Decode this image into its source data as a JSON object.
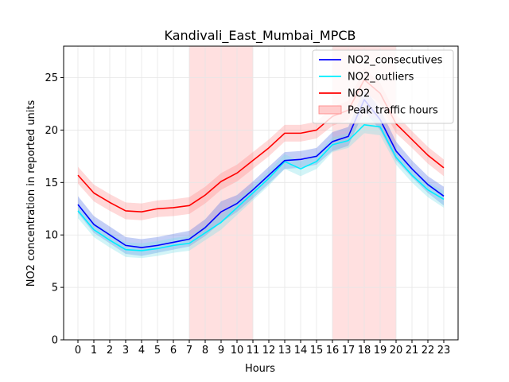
{
  "chart_data": {
    "type": "line",
    "title": "Kandivali_East_Mumbai_MPCB",
    "xlabel": "Hours",
    "ylabel": "NO2 concentration in reported units",
    "x": [
      0,
      1,
      2,
      3,
      4,
      5,
      6,
      7,
      8,
      9,
      10,
      11,
      12,
      13,
      14,
      15,
      16,
      17,
      18,
      19,
      20,
      21,
      22,
      23
    ],
    "xlim": [
      -0.9,
      23.9
    ],
    "ylim": [
      0,
      28
    ],
    "yticks": [
      0,
      5,
      10,
      15,
      20,
      25
    ],
    "grid": true,
    "legend_position": "top-right",
    "colors": {
      "NO2_consecutives": "#0000ff",
      "NO2_outliers": "#00eeff",
      "NO2": "#ff0000",
      "band_consecutives": "#3c5fe0",
      "band_outliers": "#7fe0e8",
      "band_no2": "#ff8080",
      "peak": "#ffcccc"
    },
    "peak_traffic_hours": [
      [
        7,
        11
      ],
      [
        16,
        20
      ]
    ],
    "series": [
      {
        "name": "NO2_consecutives",
        "values": [
          12.9,
          11.0,
          10.0,
          9.0,
          8.8,
          9.0,
          9.3,
          9.6,
          10.7,
          12.2,
          13.0,
          14.3,
          15.7,
          17.1,
          17.2,
          17.5,
          18.9,
          19.4,
          22.9,
          21.0,
          18.0,
          16.3,
          14.8,
          13.7
        ],
        "lower": [
          12.1,
          10.2,
          9.2,
          8.2,
          8.0,
          8.3,
          8.6,
          8.9,
          9.9,
          11.2,
          12.2,
          13.5,
          14.9,
          16.3,
          16.4,
          16.7,
          18.0,
          18.5,
          21.8,
          20.0,
          17.1,
          15.5,
          14.0,
          12.8
        ],
        "upper": [
          13.7,
          11.8,
          10.8,
          9.8,
          9.6,
          9.8,
          10.1,
          10.4,
          11.5,
          13.2,
          13.8,
          15.1,
          16.5,
          17.9,
          18.0,
          18.3,
          19.8,
          20.3,
          24.0,
          22.0,
          18.9,
          17.1,
          15.6,
          14.6
        ]
      },
      {
        "name": "NO2_outliers",
        "values": [
          12.3,
          10.5,
          9.5,
          8.6,
          8.5,
          8.7,
          9.0,
          9.2,
          10.2,
          11.2,
          12.6,
          14.0,
          15.4,
          17.0,
          16.3,
          17.0,
          18.6,
          19.0,
          20.5,
          20.3,
          17.4,
          15.7,
          14.3,
          13.4
        ],
        "lower": [
          11.6,
          9.8,
          8.8,
          7.9,
          7.8,
          8.0,
          8.3,
          8.5,
          9.5,
          10.5,
          11.9,
          13.3,
          14.7,
          16.3,
          15.6,
          16.3,
          17.9,
          18.3,
          19.7,
          19.5,
          16.7,
          15.0,
          13.6,
          12.6
        ],
        "upper": [
          13.0,
          11.2,
          10.2,
          9.3,
          9.2,
          9.4,
          9.7,
          9.9,
          10.9,
          11.9,
          13.3,
          14.7,
          16.1,
          17.7,
          17.0,
          17.7,
          19.3,
          19.7,
          21.3,
          21.1,
          18.1,
          16.4,
          15.0,
          14.2
        ]
      },
      {
        "name": "NO2",
        "values": [
          15.7,
          14.0,
          13.1,
          12.3,
          12.2,
          12.5,
          12.6,
          12.8,
          13.8,
          15.1,
          15.9,
          17.1,
          18.3,
          19.7,
          19.7,
          20.0,
          21.3,
          21.9,
          24.8,
          23.5,
          20.6,
          19.1,
          17.6,
          16.4
        ],
        "lower": [
          14.9,
          13.2,
          12.3,
          11.5,
          11.4,
          11.7,
          11.8,
          12.0,
          13.0,
          14.3,
          15.1,
          16.3,
          17.5,
          18.9,
          18.9,
          19.2,
          20.4,
          21.0,
          23.7,
          22.5,
          19.7,
          18.3,
          16.8,
          15.6
        ],
        "upper": [
          16.5,
          14.8,
          13.9,
          13.1,
          13.0,
          13.3,
          13.4,
          13.6,
          14.6,
          15.9,
          16.7,
          17.9,
          19.1,
          20.5,
          20.5,
          20.8,
          22.2,
          22.8,
          25.9,
          24.5,
          21.5,
          19.9,
          18.4,
          17.2
        ]
      }
    ],
    "legend": [
      {
        "label": "NO2_consecutives",
        "kind": "line",
        "color_key": "NO2_consecutives"
      },
      {
        "label": "NO2_outliers",
        "kind": "line",
        "color_key": "NO2_outliers"
      },
      {
        "label": "NO2",
        "kind": "line",
        "color_key": "NO2"
      },
      {
        "label": "Peak traffic hours",
        "kind": "patch",
        "color_key": "peak"
      }
    ]
  }
}
